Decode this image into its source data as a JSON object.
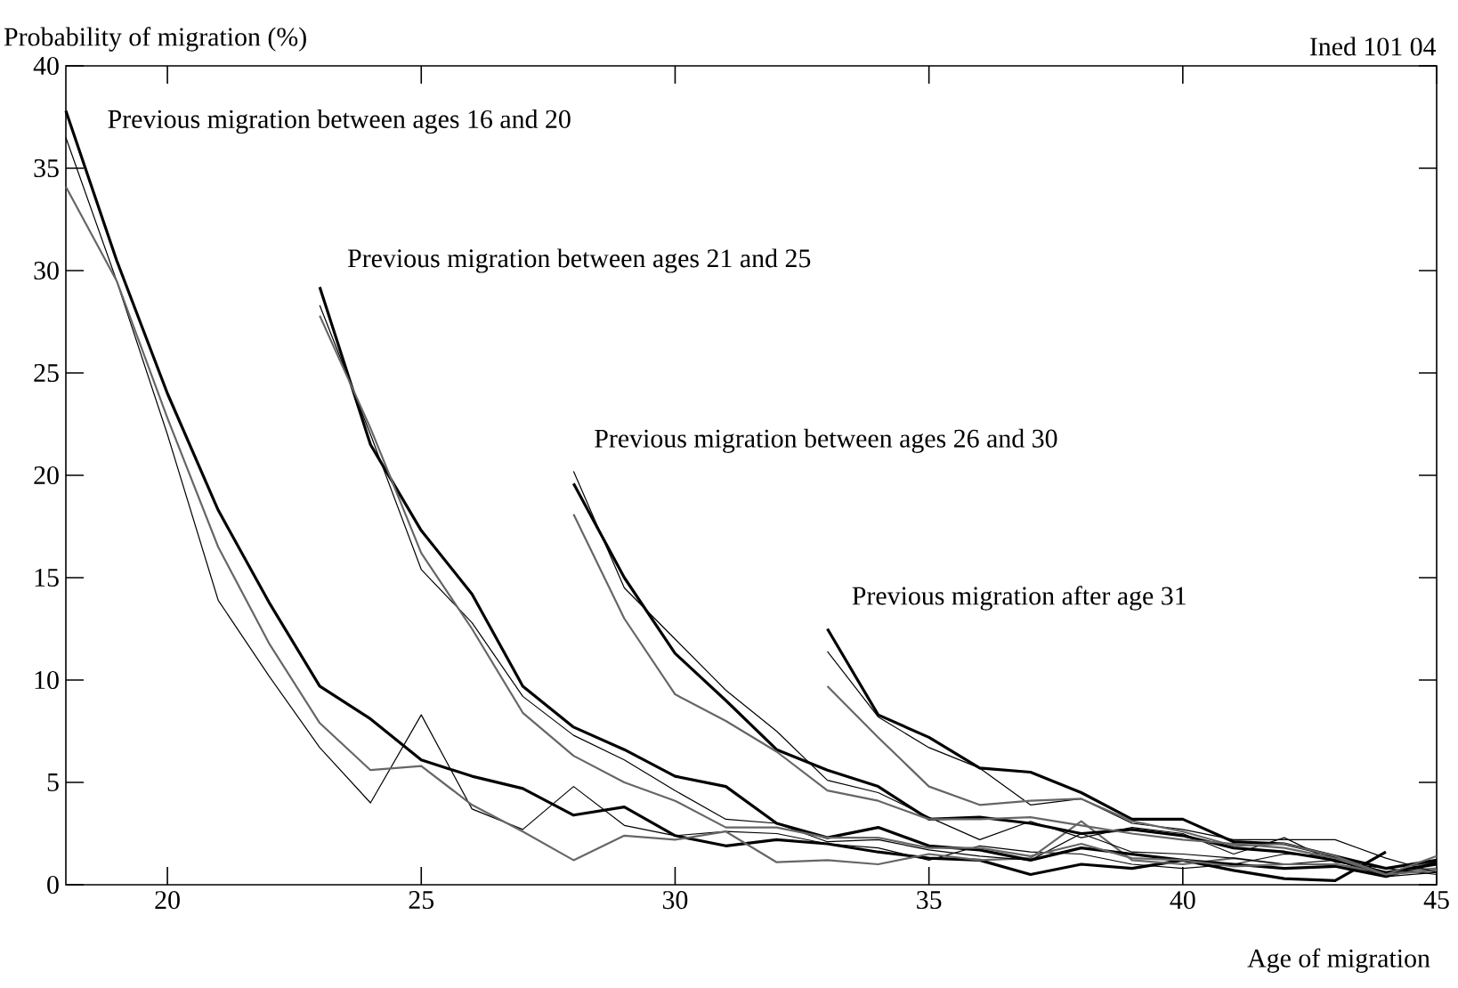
{
  "chart_data": {
    "type": "line",
    "xlabel": "Age of migration",
    "ylabel": "Probability of migration (%)",
    "xlim": [
      18,
      45
    ],
    "ylim": [
      0,
      40
    ],
    "xticks": [
      20,
      25,
      30,
      35,
      40,
      45
    ],
    "yticks": [
      0,
      5,
      10,
      15,
      20,
      25,
      30,
      35,
      40
    ],
    "grid": false,
    "marker": "none",
    "line_style": "solid",
    "annotations": [
      "Ined 101 04",
      "Previous migration between ages 16 and 20",
      "Previous migration between ages 21 and 25",
      "Previous migration between ages 26 and 30",
      "Previous migration after age 31"
    ],
    "series": [
      {
        "color": "#000000",
        "x": [
          18,
          19,
          20,
          21,
          22,
          23,
          24,
          25,
          26,
          27,
          28,
          29,
          30,
          31,
          32,
          33,
          34,
          35,
          36,
          37,
          38,
          39,
          40,
          41,
          42,
          43,
          44
        ],
        "values": [
          37.8,
          30.5,
          24,
          18.3,
          13.8,
          9.7,
          8.1,
          6.1,
          5.3,
          4.7,
          3.4,
          3.8,
          2.4,
          1.9,
          2.2,
          2.0,
          1.6,
          1.3,
          1.2,
          0.5,
          1.0,
          0.8,
          1.2,
          0.7,
          0.3,
          0.2,
          1.6
        ]
      },
      {
        "color": "#000000",
        "x": [
          18,
          19,
          20,
          21,
          22,
          23,
          24,
          25,
          26,
          27,
          28,
          29,
          30,
          31,
          32,
          33,
          34,
          35,
          36,
          37,
          38,
          39,
          40,
          41,
          42,
          43,
          44,
          45
        ],
        "values": [
          36.5,
          29.5,
          22,
          13.9,
          10.2,
          6.7,
          4.0,
          8.3,
          3.7,
          2.7,
          4.8,
          2.9,
          2.4,
          2.6,
          2.5,
          2.0,
          1.8,
          1.2,
          1.9,
          1.6,
          1.5,
          1.0,
          0.8,
          1.0,
          1.5,
          1.4,
          0.6,
          0.8
        ]
      },
      {
        "color": "#666666",
        "x": [
          18,
          19,
          20,
          21,
          22,
          23,
          24,
          25,
          26,
          27,
          28,
          29,
          30,
          31,
          32,
          33,
          34,
          35,
          36,
          37,
          38,
          39,
          40,
          41,
          42,
          43,
          44,
          45
        ],
        "values": [
          34.1,
          29.5,
          22.8,
          16.5,
          11.8,
          7.9,
          5.6,
          5.8,
          3.9,
          2.6,
          1.2,
          2.4,
          2.2,
          2.6,
          1.1,
          1.2,
          1.0,
          1.5,
          1.2,
          1.3,
          3.1,
          1.2,
          1.0,
          1.3,
          1.0,
          1.0,
          0.5,
          1.2
        ]
      },
      {
        "color": "#000000",
        "x": [
          23,
          24,
          25,
          26,
          27,
          28,
          29,
          30,
          31,
          32,
          33,
          34,
          35,
          36,
          37,
          38,
          39,
          40,
          41,
          42,
          43,
          44,
          45
        ],
        "values": [
          29.2,
          21.5,
          17.3,
          14.2,
          9.7,
          7.7,
          6.6,
          5.3,
          4.8,
          3.0,
          2.3,
          2.8,
          1.9,
          1.7,
          1.2,
          1.8,
          1.5,
          1.2,
          1.0,
          0.8,
          0.9,
          0.4,
          1.1
        ]
      },
      {
        "color": "#000000",
        "x": [
          23,
          24,
          25,
          26,
          27,
          28,
          29,
          30,
          31,
          32,
          33,
          34,
          35,
          36,
          37,
          38,
          39,
          40,
          41,
          42,
          43,
          44,
          45
        ],
        "values": [
          28.3,
          22,
          15.4,
          12.8,
          9.2,
          7.3,
          6.1,
          4.6,
          3.2,
          3.0,
          2.1,
          2.2,
          1.7,
          1.4,
          1.2,
          2.5,
          1.6,
          1.5,
          1.3,
          1.0,
          1.2,
          0.4,
          0.6
        ]
      },
      {
        "color": "#666666",
        "x": [
          23,
          24,
          25,
          26,
          27,
          28,
          29,
          30,
          31,
          32,
          33,
          34,
          35,
          36,
          37,
          38,
          39,
          40,
          41,
          42,
          43,
          44,
          45
        ],
        "values": [
          27.8,
          22.3,
          16.2,
          12.5,
          8.4,
          6.3,
          5.0,
          4.1,
          2.8,
          2.8,
          2.3,
          2.3,
          1.8,
          1.8,
          1.4,
          2.0,
          1.3,
          1.2,
          0.9,
          1.0,
          1.0,
          0.6,
          0.8
        ]
      },
      {
        "color": "#000000",
        "x": [
          28,
          29,
          30,
          31,
          32,
          33,
          34,
          35,
          36,
          37,
          38,
          39,
          40,
          41,
          42,
          43,
          44,
          45
        ],
        "values": [
          19.6,
          15.0,
          11.3,
          9.0,
          6.6,
          5.6,
          4.8,
          3.2,
          3.3,
          3.0,
          2.5,
          2.7,
          2.4,
          1.8,
          1.6,
          1.2,
          0.6,
          1.0
        ]
      },
      {
        "color": "#000000",
        "x": [
          28,
          29,
          30,
          31,
          32,
          33,
          34,
          35,
          36,
          37,
          38,
          39,
          40,
          41,
          42,
          43,
          44,
          45
        ],
        "values": [
          20.2,
          14.5,
          12,
          9.5,
          7.5,
          5.1,
          4.5,
          3.3,
          2.2,
          3.1,
          2.3,
          2.8,
          2.5,
          1.5,
          2.3,
          1.1,
          0.8,
          0.5
        ]
      },
      {
        "color": "#666666",
        "x": [
          28,
          29,
          30,
          31,
          32,
          33,
          34,
          35,
          36,
          37,
          38,
          39,
          40,
          41,
          42,
          43,
          44,
          45
        ],
        "values": [
          18.1,
          13.0,
          9.3,
          8.0,
          6.5,
          4.6,
          4.1,
          3.2,
          3.2,
          3.3,
          2.9,
          2.5,
          2.2,
          2.0,
          1.8,
          1.3,
          0.5,
          0.7
        ]
      },
      {
        "color": "#000000",
        "x": [
          33,
          34,
          35,
          36,
          37,
          38,
          39,
          40,
          41,
          42,
          43,
          44,
          45
        ],
        "values": [
          12.5,
          8.3,
          7.2,
          5.7,
          5.5,
          4.5,
          3.2,
          3.2,
          2.1,
          2.0,
          1.4,
          0.8,
          1.2
        ]
      },
      {
        "color": "#000000",
        "x": [
          33,
          34,
          35,
          36,
          37,
          38,
          39,
          40,
          41,
          42,
          43,
          44,
          45
        ],
        "values": [
          11.4,
          8.2,
          6.7,
          5.7,
          3.9,
          4.2,
          3.0,
          2.7,
          2.2,
          2.2,
          2.2,
          1.3,
          0.6
        ]
      },
      {
        "color": "#666666",
        "x": [
          33,
          34,
          35,
          36,
          37,
          38,
          39,
          40,
          41,
          42,
          43,
          44,
          45
        ],
        "values": [
          9.7,
          7.2,
          4.8,
          3.9,
          4.1,
          4.2,
          3.1,
          2.6,
          1.9,
          2.0,
          1.4,
          0.5,
          1.4
        ]
      }
    ]
  }
}
